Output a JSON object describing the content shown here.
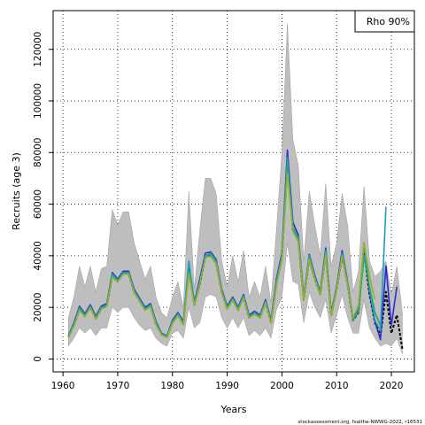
{
  "chart_data": {
    "type": "line",
    "title": "",
    "xlabel": "Years",
    "ylabel": "Recruits (age 3)",
    "xlim": [
      1958.2,
      2024.2
    ],
    "ylim": [
      -5000,
      135000
    ],
    "x_ticks": [
      1960,
      1970,
      1980,
      1990,
      2000,
      2010,
      2020
    ],
    "y_ticks": [
      0,
      20000,
      40000,
      60000,
      80000,
      100000,
      120000
    ],
    "grid": true,
    "legend": {
      "placement": "top-right",
      "text": "Rho 90%"
    },
    "credit": "stockassessment.org, fsaithe-NWWG-2022, r16531",
    "band": {
      "color": "#bebebe",
      "x": [
        1961,
        1962,
        1963,
        1964,
        1965,
        1966,
        1967,
        1968,
        1969,
        1970,
        1971,
        1972,
        1973,
        1974,
        1975,
        1976,
        1977,
        1978,
        1979,
        1980,
        1981,
        1982,
        1983,
        1984,
        1985,
        1986,
        1987,
        1988,
        1989,
        1990,
        1991,
        1992,
        1993,
        1994,
        1995,
        1996,
        1997,
        1998,
        1999,
        2000,
        2001,
        2002,
        2003,
        2004,
        2005,
        2006,
        2007,
        2008,
        2009,
        2010,
        2011,
        2012,
        2013,
        2014,
        2015,
        2016,
        2017,
        2018,
        2019,
        2020,
        2021,
        2022
      ],
      "upper": [
        16000,
        24000,
        36000,
        28000,
        36000,
        26000,
        35000,
        36000,
        58000,
        52000,
        57000,
        57000,
        45000,
        38000,
        31000,
        36000,
        24000,
        18000,
        16000,
        24000,
        30000,
        20000,
        65000,
        27000,
        50000,
        70000,
        70000,
        64000,
        38000,
        28000,
        40000,
        30000,
        42000,
        24000,
        30000,
        24000,
        36000,
        22000,
        50000,
        80000,
        130000,
        85000,
        75000,
        38000,
        65000,
        52000,
        40000,
        68000,
        36000,
        45000,
        64000,
        52000,
        26000,
        34000,
        67000,
        38000,
        32000,
        34000,
        38000,
        25000,
        36000,
        18000
      ],
      "lower": [
        5000,
        8000,
        12000,
        10000,
        12000,
        9000,
        12000,
        12000,
        20000,
        18000,
        20000,
        20000,
        16000,
        13000,
        11000,
        12000,
        8000,
        6000,
        5000,
        10000,
        11000,
        8000,
        20000,
        12000,
        14000,
        24000,
        25000,
        24000,
        16000,
        12000,
        16000,
        12000,
        16000,
        9000,
        11000,
        9000,
        12000,
        8000,
        19000,
        24000,
        45000,
        30000,
        29000,
        14000,
        26000,
        20000,
        16000,
        23000,
        10000,
        17000,
        25000,
        16000,
        10000,
        10000,
        23000,
        12000,
        8000,
        5000,
        6000,
        5000,
        8000,
        2000
      ]
    },
    "series": [
      {
        "color": "#000000",
        "dashed": true,
        "x": [
          1961,
          1962,
          1963,
          1964,
          1965,
          1966,
          1967,
          1968,
          1969,
          1970,
          1971,
          1972,
          1973,
          1974,
          1975,
          1976,
          1977,
          1978,
          1979,
          1980,
          1981,
          1982,
          1983,
          1984,
          1985,
          1986,
          1987,
          1988,
          1989,
          1990,
          1991,
          1992,
          1993,
          1994,
          1995,
          1996,
          1997,
          1998,
          1999,
          2000,
          2001,
          2002,
          2003,
          2004,
          2005,
          2006,
          2007,
          2008,
          2009,
          2010,
          2011,
          2012,
          2013,
          2014,
          2015,
          2016,
          2017,
          2018,
          2019,
          2020,
          2021,
          2022
        ],
        "values": [
          8500,
          13000,
          19000,
          16500,
          20000,
          15500,
          19500,
          20500,
          32000,
          30000,
          33000,
          33000,
          26000,
          22500,
          19000,
          20500,
          13500,
          9500,
          8500,
          14000,
          17000,
          13500,
          35000,
          21000,
          29000,
          39500,
          40000,
          37000,
          26000,
          19500,
          23000,
          19000,
          24000,
          16000,
          17500,
          16000,
          22000,
          14000,
          29000,
          39000,
          76000,
          50000,
          46000,
          23000,
          39000,
          31000,
          25000,
          41000,
          17000,
          27000,
          40000,
          29000,
          15000,
          18000,
          42000,
          25000,
          14000,
          9000,
          26000,
          10000,
          17000,
          4000
        ]
      },
      {
        "color": "#2b2bd6",
        "x": [
          1961,
          1962,
          1963,
          1964,
          1965,
          1966,
          1967,
          1968,
          1969,
          1970,
          1971,
          1972,
          1973,
          1974,
          1975,
          1976,
          1977,
          1978,
          1979,
          1980,
          1981,
          1982,
          1983,
          1984,
          1985,
          1986,
          1987,
          1988,
          1989,
          1990,
          1991,
          1992,
          1993,
          1994,
          1995,
          1996,
          1997,
          1998,
          1999,
          2000,
          2001,
          2002,
          2003,
          2004,
          2005,
          2006,
          2007,
          2008,
          2009,
          2010,
          2011,
          2012,
          2013,
          2014,
          2015,
          2016,
          2017,
          2018,
          2019,
          2020,
          2021
        ],
        "values": [
          9000,
          14000,
          20500,
          17500,
          21000,
          16500,
          20500,
          21500,
          33500,
          31000,
          34000,
          34000,
          27000,
          23500,
          20000,
          21500,
          14500,
          10000,
          9000,
          15000,
          18000,
          14500,
          37000,
          22000,
          31000,
          41000,
          41500,
          38500,
          27000,
          20500,
          24000,
          20000,
          25000,
          17000,
          18500,
          17000,
          23000,
          15000,
          31000,
          41000,
          81000,
          53000,
          48000,
          24000,
          40500,
          32500,
          26000,
          43000,
          18000,
          28000,
          42000,
          30000,
          15500,
          19000,
          45000,
          26000,
          14500,
          7500,
          36000,
          13000,
          28000
        ]
      },
      {
        "color": "#1f9fb8",
        "x": [
          1961,
          1962,
          1963,
          1964,
          1965,
          1966,
          1967,
          1968,
          1969,
          1970,
          1971,
          1972,
          1973,
          1974,
          1975,
          1976,
          1977,
          1978,
          1979,
          1980,
          1981,
          1982,
          1983,
          1984,
          1985,
          1986,
          1987,
          1988,
          1989,
          1990,
          1991,
          1992,
          1993,
          1994,
          1995,
          1996,
          1997,
          1998,
          1999,
          2000,
          2001,
          2002,
          2003,
          2004,
          2005,
          2006,
          2007,
          2008,
          2009,
          2010,
          2011,
          2012,
          2013,
          2014,
          2015,
          2016,
          2017,
          2018,
          2019
        ],
        "values": [
          8800,
          13500,
          20000,
          17000,
          20500,
          16000,
          20000,
          21000,
          33000,
          30500,
          33500,
          33500,
          26500,
          23000,
          19500,
          21000,
          14000,
          9800,
          8800,
          14500,
          17500,
          14000,
          38000,
          21500,
          30000,
          40000,
          41000,
          38000,
          26500,
          20000,
          23500,
          19500,
          24500,
          16500,
          18000,
          16500,
          22500,
          14500,
          30000,
          40000,
          78000,
          51000,
          47000,
          23500,
          40000,
          32000,
          25500,
          42000,
          17500,
          27500,
          41000,
          29500,
          15000,
          18500,
          44000,
          27000,
          15000,
          11000,
          59000
        ]
      },
      {
        "color": "#2aa37a",
        "x": [
          1961,
          1962,
          1963,
          1964,
          1965,
          1966,
          1967,
          1968,
          1969,
          1970,
          1971,
          1972,
          1973,
          1974,
          1975,
          1976,
          1977,
          1978,
          1979,
          1980,
          1981,
          1982,
          1983,
          1984,
          1985,
          1986,
          1987,
          1988,
          1989,
          1990,
          1991,
          1992,
          1993,
          1994,
          1995,
          1996,
          1997,
          1998,
          1999,
          2000,
          2001,
          2002,
          2003,
          2004,
          2005,
          2006,
          2007,
          2008,
          2009,
          2010,
          2011,
          2012,
          2013,
          2014,
          2015,
          2016,
          2017,
          2018
        ],
        "values": [
          8600,
          13200,
          19500,
          16800,
          20200,
          15800,
          19800,
          20800,
          32500,
          30200,
          33200,
          33200,
          26200,
          22800,
          19200,
          20800,
          13800,
          9600,
          8600,
          14200,
          17200,
          13800,
          34000,
          21200,
          29500,
          39800,
          40500,
          37500,
          26200,
          19800,
          23200,
          19200,
          24200,
          16200,
          17800,
          16200,
          22200,
          14200,
          29500,
          39500,
          75000,
          50500,
          46500,
          23200,
          39500,
          31500,
          25200,
          41500,
          17200,
          27200,
          40500,
          29200,
          15200,
          18200,
          40000,
          28000,
          18000,
          13000
        ]
      },
      {
        "color": "#8fb32a",
        "x": [
          1961,
          1962,
          1963,
          1964,
          1965,
          1966,
          1967,
          1968,
          1969,
          1970,
          1971,
          1972,
          1973,
          1974,
          1975,
          1976,
          1977,
          1978,
          1979,
          1980,
          1981,
          1982,
          1983,
          1984,
          1985,
          1986,
          1987,
          1988,
          1989,
          1990,
          1991,
          1992,
          1993,
          1994,
          1995,
          1996,
          1997,
          1998,
          1999,
          2000,
          2001,
          2002,
          2003,
          2004,
          2005,
          2006,
          2007,
          2008,
          2009,
          2010,
          2011,
          2012,
          2013,
          2014,
          2015,
          2016,
          2017
        ],
        "values": [
          8400,
          12800,
          18800,
          16300,
          19800,
          15300,
          19300,
          20300,
          31800,
          29800,
          32800,
          32800,
          25800,
          22300,
          18800,
          20300,
          13300,
          9300,
          8300,
          13800,
          16800,
          13300,
          33000,
          20800,
          29000,
          39300,
          39800,
          36800,
          25800,
          19300,
          22800,
          18800,
          23800,
          15800,
          17300,
          15800,
          21800,
          13800,
          28500,
          38500,
          72000,
          49500,
          45500,
          22800,
          38800,
          31000,
          24800,
          40500,
          16800,
          26800,
          40000,
          28800,
          16000,
          21000,
          45000,
          32000,
          23000
        ]
      }
    ]
  }
}
